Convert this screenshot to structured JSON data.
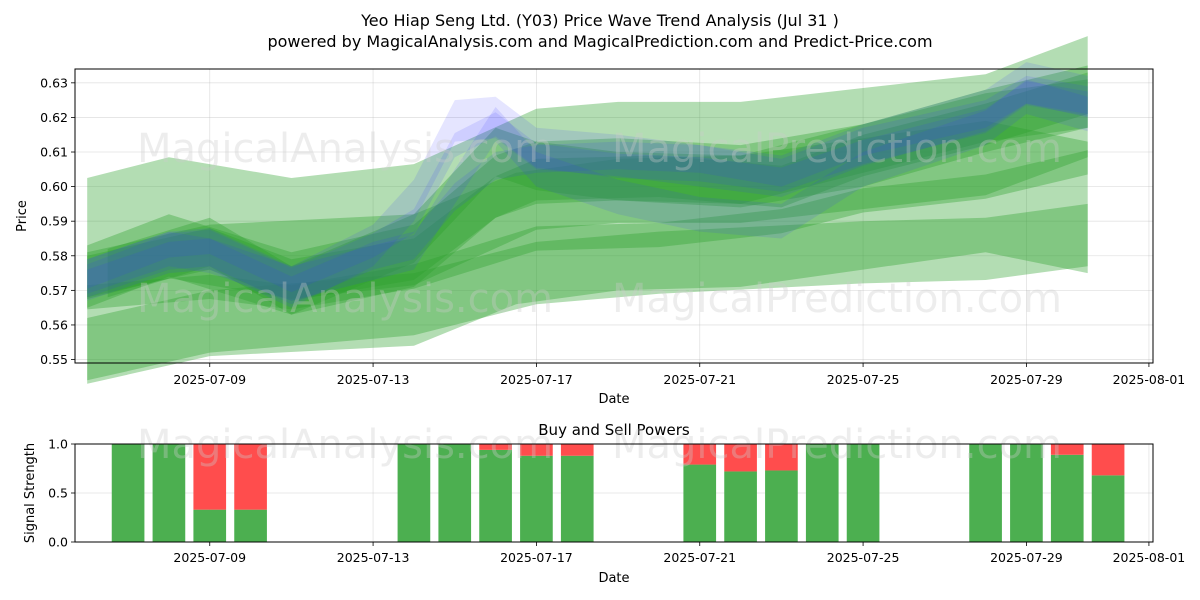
{
  "title_line1": "Yeo Hiap Seng Ltd. (Y03) Price Wave Trend Analysis (Jul 31 )",
  "title_line2": "powered by MagicalAnalysis.com and MagicalPrediction.com and Predict-Price.com",
  "watermarks": [
    "MagicalAnalysis.com",
    "MagicalPrediction.com"
  ],
  "colors": {
    "green": "#2ca02c",
    "blue": "#3333ff",
    "buy": "#4caf50",
    "sell": "#ff4d4d"
  },
  "chart_data": [
    {
      "type": "area",
      "title": "",
      "xlabel": "Date",
      "ylabel": "Price",
      "ylim": [
        0.549,
        0.634
      ],
      "xlim": [
        "2025-07-05.7",
        "2025-08-01.1"
      ],
      "x_ticks": [
        "2025-07-09",
        "2025-07-13",
        "2025-07-17",
        "2025-07-21",
        "2025-07-25",
        "2025-07-29",
        "2025-08-01"
      ],
      "y_ticks": [
        "0.55",
        "0.56",
        "0.57",
        "0.58",
        "0.59",
        "0.60",
        "0.61",
        "0.62",
        "0.63"
      ],
      "dates": [
        "2025-07-06",
        "2025-07-08",
        "2025-07-09",
        "2025-07-10",
        "2025-07-11",
        "2025-07-14",
        "2025-07-15",
        "2025-07-16",
        "2025-07-17",
        "2025-07-18",
        "2025-07-21",
        "2025-07-22",
        "2025-07-23",
        "2025-07-24",
        "2025-07-25",
        "2025-07-28",
        "2025-07-29",
        "2025-07-30",
        "2025-07-31"
      ],
      "series": [
        {
          "name": "green-wide-long-1",
          "kind": "green-band",
          "x": [
            6,
            8,
            11,
            14,
            17,
            19,
            22,
            25,
            28,
            30.5
          ],
          "center": [
            0.585,
            0.591,
            0.585,
            0.589,
            0.605,
            0.607,
            0.607,
            0.611,
            0.615,
            0.626
          ],
          "half": [
            0.0175,
            0.0175,
            0.0175,
            0.0175,
            0.0175,
            0.0175,
            0.0175,
            0.0175,
            0.0175,
            0.0175
          ]
        },
        {
          "name": "green-wide-long-2",
          "kind": "green-band",
          "x": [
            6,
            9,
            14,
            16.5,
            19,
            22,
            25,
            28,
            30.5
          ],
          "center": [
            0.562,
            0.57,
            0.573,
            0.585,
            0.589,
            0.59,
            0.595,
            0.6,
            0.594
          ],
          "half": [
            0.019,
            0.019,
            0.019,
            0.019,
            0.019,
            0.019,
            0.019,
            0.019,
            0.019
          ]
        },
        {
          "name": "green-wide-long-3",
          "kind": "green-band",
          "x": [
            6,
            9,
            14,
            17,
            20,
            25,
            28,
            30.5
          ],
          "center": [
            0.553,
            0.561,
            0.566,
            0.575,
            0.578,
            0.581,
            0.582,
            0.586
          ],
          "half": [
            0.009,
            0.009,
            0.009,
            0.009,
            0.009,
            0.009,
            0.009,
            0.009
          ]
        },
        {
          "name": "green-mid-1",
          "kind": "green-band",
          "x": [
            6,
            8,
            11,
            14,
            16,
            17,
            19,
            22,
            25,
            28,
            30.5
          ],
          "center": [
            0.574,
            0.583,
            0.572,
            0.58,
            0.6,
            0.604,
            0.605,
            0.603,
            0.609,
            0.619,
            0.626
          ],
          "half": [
            0.009,
            0.009,
            0.009,
            0.009,
            0.009,
            0.009,
            0.009,
            0.009,
            0.009,
            0.009,
            0.009
          ]
        },
        {
          "name": "green-mid-2",
          "kind": "green-band",
          "x": [
            6.5,
            9,
            11,
            14,
            16,
            17,
            19,
            22,
            25,
            28,
            30.5
          ],
          "center": [
            0.575,
            0.584,
            0.57,
            0.585,
            0.61,
            0.606,
            0.603,
            0.602,
            0.611,
            0.62,
            0.624
          ],
          "half": [
            0.007,
            0.007,
            0.007,
            0.007,
            0.007,
            0.007,
            0.007,
            0.007,
            0.007,
            0.007,
            0.007
          ]
        },
        {
          "name": "green-mid-3",
          "kind": "green-band",
          "x": [
            6,
            9,
            11,
            14,
            16,
            17,
            20,
            23,
            25,
            28,
            30.5
          ],
          "center": [
            0.574,
            0.582,
            0.573,
            0.579,
            0.597,
            0.602,
            0.603,
            0.6,
            0.609,
            0.618,
            0.627
          ],
          "half": [
            0.006,
            0.006,
            0.006,
            0.006,
            0.006,
            0.006,
            0.006,
            0.006,
            0.006,
            0.006,
            0.006
          ]
        },
        {
          "name": "green-low-line",
          "kind": "green-band",
          "x": [
            6,
            9,
            11,
            14,
            17,
            20,
            23,
            25,
            28,
            30.5
          ],
          "center": [
            0.568,
            0.571,
            0.568,
            0.574,
            0.585,
            0.586,
            0.59,
            0.596,
            0.6,
            0.607
          ],
          "half": [
            0.0035,
            0.0035,
            0.0035,
            0.0035,
            0.0035,
            0.0035,
            0.0035,
            0.0035,
            0.0035,
            0.0035
          ]
        },
        {
          "name": "blue-1",
          "kind": "blue-band",
          "x": [
            6,
            8,
            9,
            11,
            13,
            14,
            15,
            16,
            17,
            19,
            21,
            23,
            25,
            28,
            29,
            30.5
          ],
          "center": [
            0.574,
            0.583,
            0.584,
            0.573,
            0.583,
            0.59,
            0.612,
            0.618,
            0.609,
            0.606,
            0.605,
            0.602,
            0.61,
            0.619,
            0.627,
            0.624
          ],
          "half": [
            0.0035,
            0.0035,
            0.0035,
            0.0035,
            0.0035,
            0.0035,
            0.0035,
            0.0035,
            0.0035,
            0.0035,
            0.0035,
            0.0035,
            0.0035,
            0.0035,
            0.0035,
            0.0035
          ]
        },
        {
          "name": "blue-2",
          "kind": "blue-band",
          "x": [
            6,
            8,
            9,
            11,
            13,
            14,
            15,
            16,
            17,
            19,
            21,
            23,
            25,
            28,
            29,
            30.5
          ],
          "center": [
            0.572,
            0.58,
            0.581,
            0.57,
            0.58,
            0.583,
            0.597,
            0.606,
            0.608,
            0.609,
            0.608,
            0.604,
            0.613,
            0.621,
            0.628,
            0.625
          ],
          "half": [
            0.004,
            0.004,
            0.004,
            0.004,
            0.004,
            0.004,
            0.004,
            0.004,
            0.004,
            0.004,
            0.004,
            0.004,
            0.004,
            0.004,
            0.004,
            0.004
          ]
        },
        {
          "name": "blue-3",
          "kind": "blue-band",
          "x": [
            6,
            8,
            9,
            11,
            14,
            15,
            16,
            17,
            19,
            21,
            23,
            25,
            28,
            29,
            30.5
          ],
          "center": [
            0.574,
            0.582,
            0.58,
            0.572,
            0.581,
            0.6,
            0.618,
            0.605,
            0.597,
            0.592,
            0.59,
            0.605,
            0.617,
            0.626,
            0.621
          ],
          "half": [
            0.005,
            0.005,
            0.005,
            0.005,
            0.005,
            0.005,
            0.005,
            0.005,
            0.005,
            0.005,
            0.005,
            0.005,
            0.005,
            0.005,
            0.005
          ]
        },
        {
          "name": "blue-4",
          "kind": "blue-band",
          "x": [
            6,
            8,
            9,
            11,
            13,
            14,
            15,
            16,
            17,
            19,
            21,
            23,
            25,
            28,
            29,
            30.5
          ],
          "center": [
            0.573,
            0.581,
            0.582,
            0.571,
            0.583,
            0.596,
            0.619,
            0.62,
            0.611,
            0.609,
            0.606,
            0.603,
            0.612,
            0.622,
            0.63,
            0.626
          ],
          "half": [
            0.006,
            0.006,
            0.006,
            0.006,
            0.006,
            0.006,
            0.006,
            0.006,
            0.006,
            0.006,
            0.006,
            0.006,
            0.006,
            0.006,
            0.006,
            0.006
          ]
        }
      ]
    },
    {
      "type": "bar",
      "title": "Buy and Sell Powers",
      "xlabel": "Date",
      "ylabel": "Signal Strength",
      "ylim": [
        0,
        1
      ],
      "y_ticks": [
        "0.0",
        "0.5",
        "1.0"
      ],
      "x_ticks": [
        "2025-07-09",
        "2025-07-13",
        "2025-07-17",
        "2025-07-21",
        "2025-07-25",
        "2025-07-29",
        "2025-08-01"
      ],
      "categories": [
        "2025-07-07",
        "2025-07-08",
        "2025-07-09",
        "2025-07-10",
        "2025-07-14",
        "2025-07-15",
        "2025-07-16",
        "2025-07-17",
        "2025-07-18",
        "2025-07-21",
        "2025-07-22",
        "2025-07-23",
        "2025-07-24",
        "2025-07-25",
        "2025-07-28",
        "2025-07-29",
        "2025-07-30",
        "2025-07-31"
      ],
      "series": [
        {
          "name": "Buy",
          "values": [
            1.0,
            1.0,
            0.33,
            0.33,
            1.0,
            1.0,
            0.94,
            0.88,
            0.88,
            0.79,
            0.72,
            0.73,
            1.0,
            1.0,
            1.0,
            1.0,
            0.89,
            0.68
          ]
        },
        {
          "name": "Sell",
          "values": [
            0.0,
            0.0,
            0.67,
            0.67,
            0.0,
            0.0,
            0.06,
            0.12,
            0.12,
            0.21,
            0.28,
            0.27,
            0.0,
            0.0,
            0.0,
            0.0,
            0.11,
            0.32
          ]
        }
      ]
    }
  ]
}
